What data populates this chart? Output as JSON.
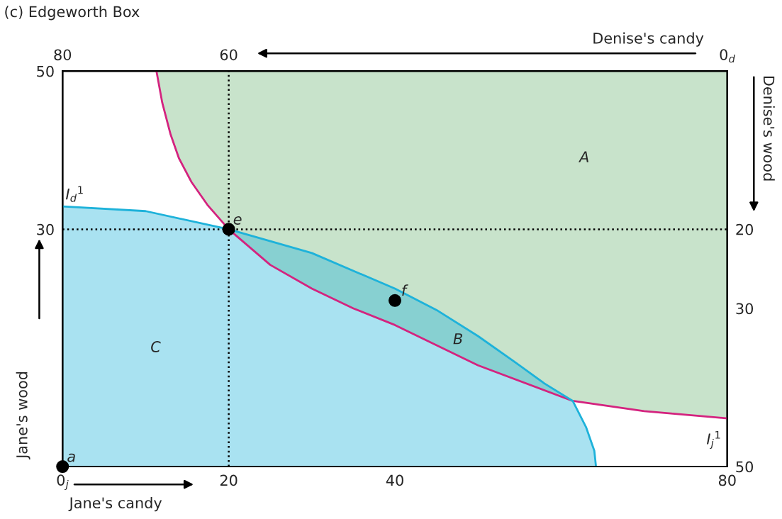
{
  "chart_data": {
    "type": "area",
    "title": "(c) Edgeworth Box",
    "xlabel": "Jane's candy",
    "ylabel": "Jane's wood",
    "x2label": "Denise's candy",
    "y2label": "Denise's wood",
    "xlim": [
      0,
      80
    ],
    "xticks": [
      {
        "value": 0,
        "label": "0$_{j}$"
      },
      20,
      40,
      80
    ],
    "ylim": [
      0,
      50
    ],
    "yticks": [
      30,
      50
    ],
    "x2lim": [
      80,
      0
    ],
    "x2ticks": [
      80,
      60,
      {
        "value": 0,
        "label": "0$_{d}$"
      }
    ],
    "y2lim": [
      50,
      0
    ],
    "y2ticks": [
      20,
      30,
      50
    ],
    "series": [
      {
        "axis": "y2",
        "name": "I$_{j}$$^{1}$",
        "color": "#d4237f",
        "colors": [
          "#c8e3cb",
          "#c8e3cb",
          "#c8e3cb",
          "#c8e3cb",
          "#c8e3cb",
          "#c8e3cb",
          "#c8e3cb",
          "#c8e3cb",
          "#c8e3cb",
          "#c8e3cb",
          "#c8e3cb",
          "#c8e3cb",
          "#c8e3cb",
          "#c8e3cb",
          "#c8e3cb"
        ],
        "x": [
          11.3,
          12,
          13,
          14,
          15.5,
          17.5,
          20,
          25,
          30,
          35,
          40,
          50,
          61.4,
          70,
          80
        ],
        "values": [
          0,
          4,
          8,
          11,
          14,
          17,
          20,
          24.5,
          27.5,
          30,
          32.1,
          37.2,
          41.7,
          43,
          43.9
        ]
      },
      {
        "type": "area",
        "name": "I$_{d}$$^{1}$",
        "color": "#1eb2da",
        "x": [
          0,
          10,
          20,
          30,
          40,
          45,
          50,
          55,
          58,
          61.4,
          63,
          64,
          64.2
        ],
        "values": [
          32.9,
          32.3,
          30,
          27,
          22.5,
          19.8,
          16.5,
          12.8,
          10.5,
          8.3,
          5,
          2,
          0
        ]
      },
      {
        "type": "scatter",
        "color": "#000000",
        "marker": "circle",
        "x": [
          0,
          20,
          40
        ],
        "values": [
          0,
          30,
          21
        ],
        "value_labels": [
          "a",
          "e",
          "f"
        ]
      }
    ],
    "ref_lines": [
      {
        "axis": "x",
        "value": 20,
        "color": "#000000",
        "line_style": "dotted"
      },
      {
        "axis": "y",
        "value": 30,
        "color": "#000000",
        "line_style": "dotted"
      }
    ],
    "annotations": [
      "A",
      "B",
      "C"
    ]
  }
}
